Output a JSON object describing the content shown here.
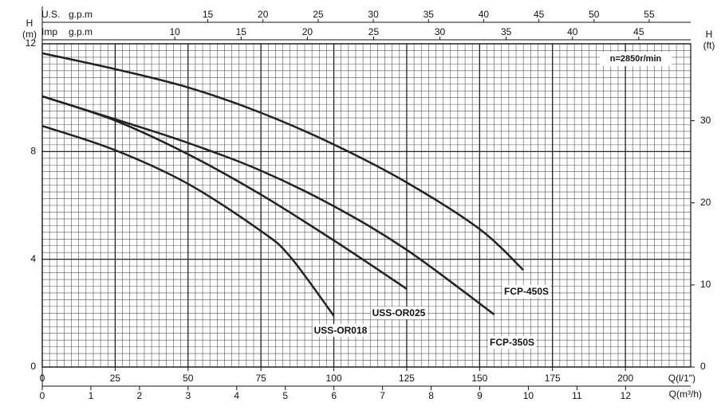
{
  "chart_data": {
    "type": "line",
    "annotation": "n=2850r/min",
    "ylabel": "H",
    "yunit": "(m)",
    "ylim": [
      0,
      12
    ],
    "yticks": [
      0,
      4,
      8,
      12
    ],
    "y2label": "H",
    "y2unit": "(ft)",
    "y2lim": [
      0,
      39.37
    ],
    "y2ticks": [
      0,
      10,
      20,
      30
    ],
    "x_label": "Q(l/1\")",
    "xlim": [
      0,
      222.4
    ],
    "xticks": [
      0,
      25,
      50,
      75,
      100,
      125,
      150,
      175,
      200
    ],
    "x2_label": "Q(m³/h)",
    "x2lim": [
      0,
      13.34
    ],
    "x2ticks": [
      0,
      1,
      2,
      3,
      4,
      5,
      6,
      7,
      8,
      9,
      10,
      11,
      12
    ],
    "x3_label": "U.S.",
    "x3_unit": "g.p.m",
    "x3lim": [
      0,
      58.76
    ],
    "x3ticks": [
      15,
      20,
      25,
      30,
      35,
      40,
      45,
      50,
      55
    ],
    "x4_label": "Imp",
    "x4_unit": "g.p.m",
    "x4lim": [
      0,
      48.92
    ],
    "x4ticks": [
      10,
      15,
      20,
      25,
      30,
      35,
      40,
      45
    ],
    "grid": true,
    "series": [
      {
        "name": "FCP-450S",
        "color": "#222222",
        "x": [
          0,
          25,
          50,
          75,
          100,
          125,
          150,
          165
        ],
        "values": [
          11.65,
          11.06,
          10.38,
          9.44,
          8.26,
          6.85,
          5.12,
          3.6
        ]
      },
      {
        "name": "FCP-350S",
        "color": "#222222",
        "x": [
          0,
          25,
          50,
          75,
          100,
          125,
          155
        ],
        "values": [
          10.05,
          9.2,
          8.32,
          7.29,
          5.97,
          4.35,
          1.95
        ]
      },
      {
        "name": "USS-OR025",
        "color": "#222222",
        "x": [
          0,
          25,
          50,
          75,
          100,
          125
        ],
        "values": [
          10.05,
          9.15,
          7.9,
          6.4,
          4.7,
          2.9
        ]
      },
      {
        "name": "USS-OR018",
        "color": "#222222",
        "x": [
          0,
          25,
          50,
          75,
          85,
          100
        ],
        "values": [
          8.95,
          8.05,
          6.8,
          5.05,
          4.1,
          1.9
        ]
      }
    ]
  }
}
